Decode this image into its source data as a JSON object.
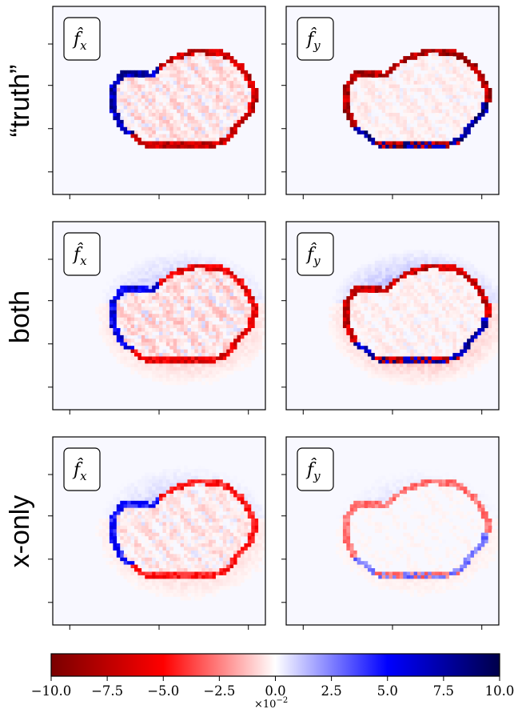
{
  "chart_data": {
    "type": "heatmap",
    "layout": {
      "rows": 3,
      "cols": 2
    },
    "row_labels": [
      "“truth”",
      "both",
      "x-only"
    ],
    "panel_labels": [
      "f̂",
      "f̂"
    ],
    "panel_label_subscripts": [
      "x",
      "y"
    ],
    "colormap": {
      "name": "seismic-like",
      "stops": [
        "#7a0000",
        "#ff0000",
        "#ffffff",
        "#0000ff",
        "#00004a"
      ],
      "background": "#f8f8ff"
    },
    "colorbar": {
      "min": -10.0,
      "max": 10.0,
      "tick_values": [
        -10,
        -7.5,
        -5,
        -2.5,
        0,
        2.5,
        5,
        7.5,
        10
      ],
      "tick_labels": [
        "−10.0",
        "−7.5",
        "−5.0",
        "−2.5",
        "0.0",
        "2.5",
        "5.0",
        "7.5",
        "10.0"
      ],
      "scale_label": "×10",
      "scale_exponent": "−2"
    },
    "panels": [
      {
        "row": 0,
        "col": 0,
        "component": "x",
        "boundary_strength": 0.9,
        "interior_strength": 0.18,
        "ring_strength": 0.0
      },
      {
        "row": 0,
        "col": 1,
        "component": "y",
        "boundary_strength": 1.0,
        "interior_strength": 0.12,
        "ring_strength": 0.0
      },
      {
        "row": 1,
        "col": 0,
        "component": "x",
        "boundary_strength": 0.75,
        "interior_strength": 0.2,
        "ring_strength": 0.12
      },
      {
        "row": 1,
        "col": 1,
        "component": "y",
        "boundary_strength": 0.9,
        "interior_strength": 0.12,
        "ring_strength": 0.16
      },
      {
        "row": 2,
        "col": 0,
        "component": "x",
        "boundary_strength": 0.6,
        "interior_strength": 0.15,
        "ring_strength": 0.1
      },
      {
        "row": 2,
        "col": 1,
        "component": "y",
        "boundary_strength": 0.35,
        "interior_strength": 0.05,
        "ring_strength": 0.06
      }
    ]
  }
}
